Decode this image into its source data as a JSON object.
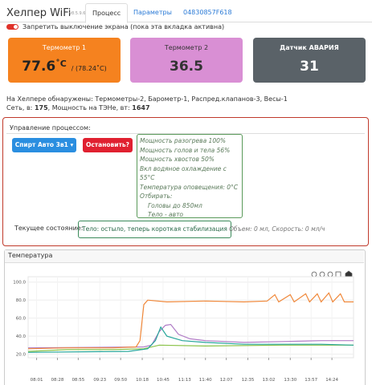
{
  "header": {
    "title": "Хелпер WiFi",
    "version": "v8.5.9.68",
    "tabs": [
      "Процесс",
      "Параметры",
      "04830857F618"
    ]
  },
  "toggle": {
    "label": "Запретить выключение экрана (пока эта вкладка активна)"
  },
  "cards": [
    {
      "label": "Термометр 1",
      "value": "77.6",
      "unit": "˚C",
      "extra": "/ (78.24˚C)"
    },
    {
      "label": "Термометр 2",
      "value": "36.5"
    },
    {
      "label": "Датчик АВАРИЯ",
      "value": "31"
    }
  ],
  "info": {
    "detected": "На Хелпере обнаружены: Термометры-2, Барометр-1, Распред.клапанов-3, Весы-1",
    "network_label": "Сеть, в:",
    "network_value": "175",
    "power_label": ", Мощность на ТЭНе, вт:",
    "power_value": "1647"
  },
  "control": {
    "title": "Управление процессом:",
    "mode_button": "Спирт Авто 3в1",
    "stop_button": "Остановить?",
    "settings": [
      "Мощность разогрева 100%",
      "Мощность голов и тела 56%",
      "Мощность хвостов 50%",
      "Вкл водяное охлаждение с 55°C",
      "Температура оповещения: 0°C",
      "Отбирать:"
    ],
    "settings_sub": [
      "Головы до 850мл",
      "Тело - авто"
    ],
    "state_label": "Текущее состояние:",
    "state": "Тело: остыло, теперь короткая стабилизация",
    "volume": "Объем: 0 мл, Скорость: 0 мл/ч"
  },
  "chart_panel": {
    "title": "Температура"
  },
  "chart_data": {
    "type": "line",
    "grid": true,
    "xlim": [
      470,
      892
    ],
    "ylim": [
      16,
      106
    ],
    "yticks": [
      {
        "value": 20,
        "label": "20.0"
      },
      {
        "value": 40,
        "label": "40.0"
      },
      {
        "value": 60,
        "label": "60.0"
      },
      {
        "value": 80,
        "label": "80.0"
      },
      {
        "value": 100,
        "label": "100.0"
      }
    ],
    "xticks": [
      {
        "value": 481,
        "label": "08:01"
      },
      {
        "value": 508,
        "label": "08:28"
      },
      {
        "value": 535,
        "label": "08:55"
      },
      {
        "value": 563,
        "label": "09:23"
      },
      {
        "value": 590,
        "label": "09:50"
      },
      {
        "value": 618,
        "label": "10:18"
      },
      {
        "value": 645,
        "label": "10:45"
      },
      {
        "value": 673,
        "label": "11:13"
      },
      {
        "value": 700,
        "label": "11:40"
      },
      {
        "value": 727,
        "label": "12:07"
      },
      {
        "value": 755,
        "label": "12:35"
      },
      {
        "value": 782,
        "label": "13:02"
      },
      {
        "value": 810,
        "label": "13:30"
      },
      {
        "value": 837,
        "label": "13:57"
      },
      {
        "value": 864,
        "label": "14:24"
      }
    ],
    "series": [
      {
        "color": "#8bc34a",
        "x": [
          470,
          520,
          580,
          620,
          640,
          700,
          800,
          892
        ],
        "values": [
          23,
          25,
          25,
          26,
          30,
          29,
          30,
          30
        ]
      },
      {
        "color": "#b07cc6",
        "x": [
          470,
          620,
          630,
          640,
          648,
          655,
          665,
          680,
          700,
          750,
          800,
          850,
          892
        ],
        "values": [
          27,
          28,
          30,
          45,
          52,
          53,
          42,
          37,
          35,
          33,
          34,
          35,
          35
        ]
      },
      {
        "color": "#26a69a",
        "x": [
          470,
          600,
          625,
          635,
          642,
          650,
          670,
          700,
          750,
          800,
          850,
          892
        ],
        "values": [
          22,
          23,
          26,
          35,
          50,
          40,
          35,
          33,
          31,
          31,
          31,
          30
        ]
      },
      {
        "color": "#f0883a",
        "x": [
          470,
          520,
          580,
          610,
          615,
          620,
          625,
          650,
          700,
          750,
          780,
          790,
          795,
          810,
          815,
          830,
          835,
          845,
          850,
          860,
          865,
          875,
          880,
          892
        ],
        "values": [
          26,
          27,
          27,
          28,
          35,
          75,
          80,
          78,
          79,
          78,
          79,
          86,
          78,
          86,
          78,
          87,
          78,
          87,
          78,
          88,
          78,
          87,
          78,
          78
        ]
      }
    ]
  }
}
